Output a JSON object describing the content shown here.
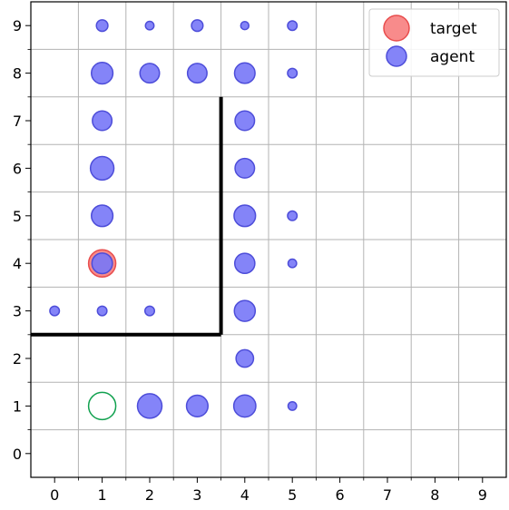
{
  "chart_data": {
    "type": "scatter",
    "title": "",
    "xlabel": "",
    "ylabel": "",
    "xlim": [
      -0.5,
      9.5
    ],
    "ylim": [
      -0.5,
      9.5
    ],
    "x_ticks": [
      0,
      1,
      2,
      3,
      4,
      5,
      6,
      7,
      8,
      9
    ],
    "y_ticks": [
      0,
      1,
      2,
      3,
      4,
      5,
      6,
      7,
      8,
      9
    ],
    "grid": true,
    "legend_placement": "top-right",
    "legend": [
      {
        "label": "target",
        "color": "#ff4d4d",
        "marker": "circle"
      },
      {
        "label": "agent",
        "color": "#4d4dff",
        "marker": "circle"
      }
    ],
    "colors": {
      "agent_fill": "#7777f7",
      "agent_edge": "#4d4dd9",
      "target_fill": "#f77777",
      "target_edge": "#e84d4d",
      "start_edge": "#11a14f",
      "wall": "#000000",
      "grid": "#b3b3b3"
    },
    "walls": [
      {
        "x": [
          3.5,
          3.5
        ],
        "y": [
          2.5,
          7.5
        ]
      },
      {
        "x": [
          -0.5,
          3.5
        ],
        "y": [
          2.5,
          2.5
        ]
      }
    ],
    "target": {
      "x": 1,
      "y": 4
    },
    "start": {
      "x": 1,
      "y": 1
    },
    "agent_points": [
      {
        "x": 1,
        "y": 9,
        "size": 0.35
      },
      {
        "x": 2,
        "y": 9,
        "size": 0.2
      },
      {
        "x": 3,
        "y": 9,
        "size": 0.35
      },
      {
        "x": 4,
        "y": 9,
        "size": 0.18
      },
      {
        "x": 5,
        "y": 9,
        "size": 0.25
      },
      {
        "x": 1,
        "y": 8,
        "size": 0.85
      },
      {
        "x": 2,
        "y": 8,
        "size": 0.75
      },
      {
        "x": 3,
        "y": 8,
        "size": 0.75
      },
      {
        "x": 4,
        "y": 8,
        "size": 0.8
      },
      {
        "x": 5,
        "y": 8,
        "size": 0.25
      },
      {
        "x": 1,
        "y": 7,
        "size": 0.75
      },
      {
        "x": 4,
        "y": 7,
        "size": 0.75
      },
      {
        "x": 1,
        "y": 6,
        "size": 0.95
      },
      {
        "x": 4,
        "y": 6,
        "size": 0.75
      },
      {
        "x": 1,
        "y": 5,
        "size": 0.85
      },
      {
        "x": 4,
        "y": 5,
        "size": 0.85
      },
      {
        "x": 5,
        "y": 5,
        "size": 0.25
      },
      {
        "x": 1,
        "y": 4,
        "size": 0.8
      },
      {
        "x": 4,
        "y": 4,
        "size": 0.78
      },
      {
        "x": 5,
        "y": 4,
        "size": 0.2
      },
      {
        "x": 0,
        "y": 3,
        "size": 0.25
      },
      {
        "x": 1,
        "y": 3,
        "size": 0.25
      },
      {
        "x": 2,
        "y": 3,
        "size": 0.25
      },
      {
        "x": 4,
        "y": 3,
        "size": 0.82
      },
      {
        "x": 4,
        "y": 2,
        "size": 0.65
      },
      {
        "x": 2,
        "y": 1,
        "size": 1.0
      },
      {
        "x": 3,
        "y": 1,
        "size": 0.85
      },
      {
        "x": 4,
        "y": 1,
        "size": 0.88
      },
      {
        "x": 5,
        "y": 1,
        "size": 0.2
      }
    ]
  }
}
